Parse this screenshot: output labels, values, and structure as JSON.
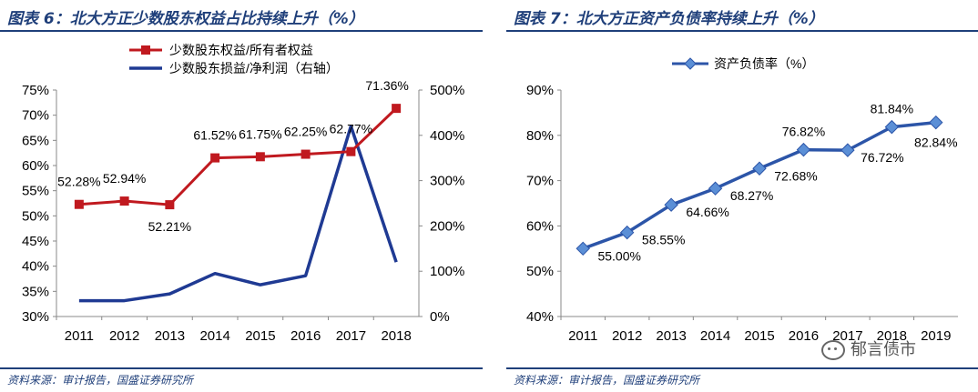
{
  "left": {
    "title": "图表 6：北大方正少数股东权益占比持续上升（%）",
    "source": "资料来源：审计报告，国盛证券研究所"
  },
  "right": {
    "title": "图表 7：北大方正资产负债率持续上升（%）",
    "source": "资料来源：审计报告，国盛证券研究所"
  },
  "watermark": {
    "text": "郁言债市",
    "icon": "wechat-icon"
  },
  "colors": {
    "accent": "#1f3f7a",
    "red_series": "#c0191f",
    "blue_series": "#1f3a93",
    "debt_series": "#2c55a8",
    "marker": "#5b8fd6"
  },
  "chart_data": [
    {
      "type": "line",
      "title": "北大方正少数股东权益占比持续上升（%）",
      "categories": [
        "2011",
        "2012",
        "2013",
        "2014",
        "2015",
        "2016",
        "2017",
        "2018"
      ],
      "series": [
        {
          "name": "少数股东权益/所有者权益",
          "axis": "left",
          "values": [
            52.28,
            52.94,
            52.21,
            61.52,
            61.75,
            62.25,
            62.77,
            71.36
          ],
          "labels": [
            "52.28%",
            "52.94%",
            "52.21%",
            "61.52%",
            "61.75%",
            "62.25%",
            "62.77%",
            "71.36%"
          ],
          "marker": "square"
        },
        {
          "name": "少数股东损益/净利润（右轴）",
          "axis": "right",
          "values": [
            35,
            35,
            50,
            95,
            70,
            90,
            420,
            120
          ]
        }
      ],
      "y_left": {
        "ticks": [
          "30%",
          "35%",
          "40%",
          "45%",
          "50%",
          "55%",
          "60%",
          "65%",
          "70%",
          "75%"
        ],
        "min": 30,
        "max": 75
      },
      "y_right": {
        "ticks": [
          "0%",
          "100%",
          "200%",
          "300%",
          "400%",
          "500%"
        ],
        "min": 0,
        "max": 500
      },
      "legend": "top-center"
    },
    {
      "type": "line",
      "title": "北大方正资产负债率持续上升（%）",
      "categories": [
        "2011",
        "2012",
        "2013",
        "2014",
        "2015",
        "2016",
        "2017",
        "2018",
        "2019"
      ],
      "series": [
        {
          "name": "资产负债率（%）",
          "values": [
            55.0,
            58.55,
            64.66,
            68.27,
            72.68,
            76.82,
            76.72,
            81.84,
            82.84
          ],
          "labels": [
            "55.00%",
            "58.55%",
            "64.66%",
            "68.27%",
            "72.68%",
            "76.82%",
            "76.72%",
            "81.84%",
            "82.84%"
          ],
          "marker": "diamond"
        }
      ],
      "y_left": {
        "ticks": [
          "40%",
          "50%",
          "60%",
          "70%",
          "80%",
          "90%"
        ],
        "min": 40,
        "max": 90
      },
      "legend": "top-center"
    }
  ]
}
